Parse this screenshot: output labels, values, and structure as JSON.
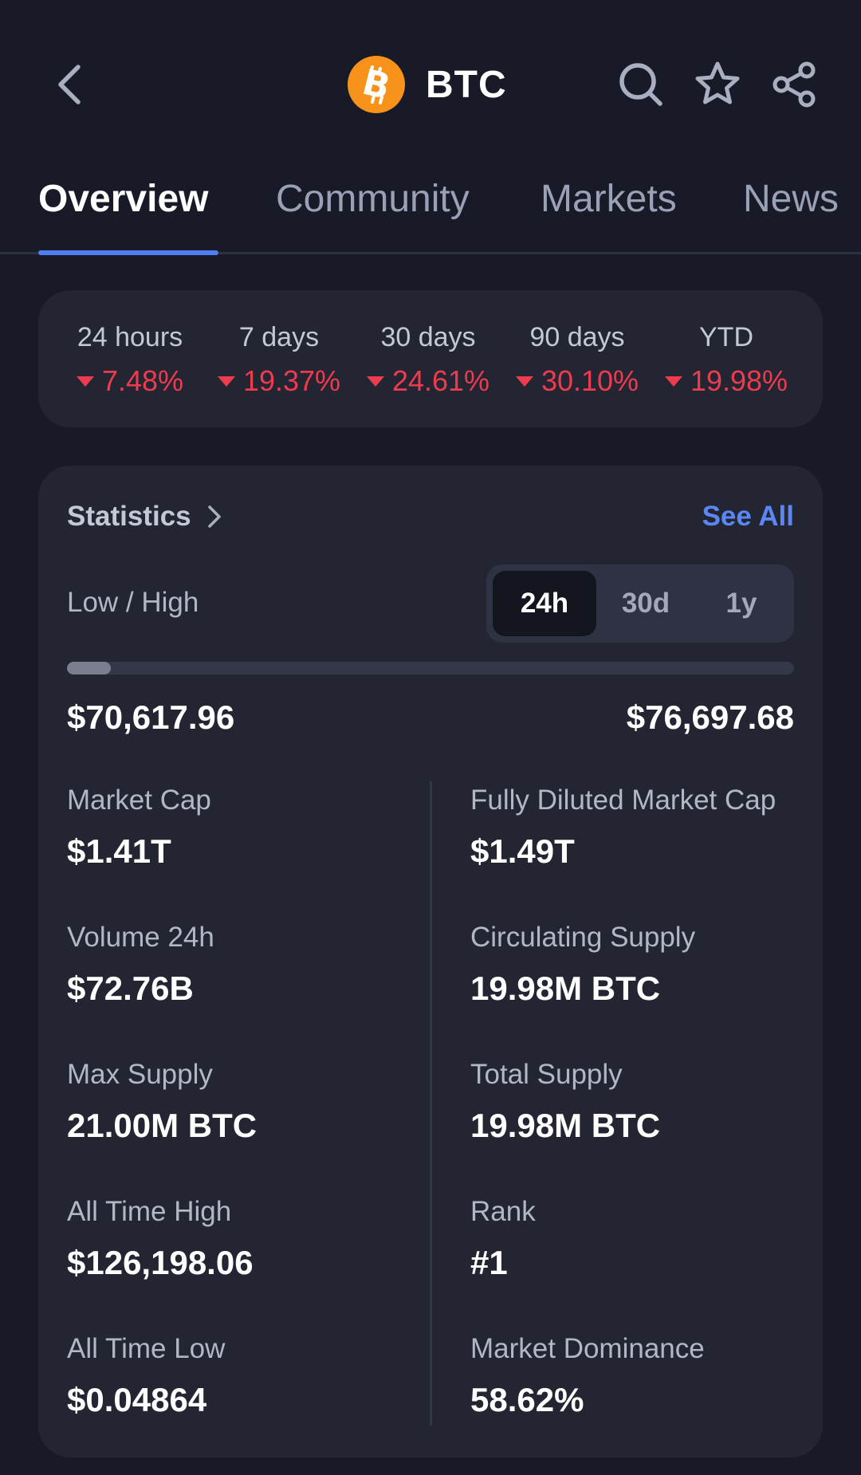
{
  "header": {
    "title": "BTC",
    "icons": {
      "back": "chevron-left-icon",
      "search": "search-icon",
      "favorite": "star-icon",
      "share": "share-icon"
    },
    "logo_color": "#f7931a"
  },
  "tabs": [
    {
      "label": "Overview",
      "active": true
    },
    {
      "label": "Community",
      "active": false
    },
    {
      "label": "Markets",
      "active": false
    },
    {
      "label": "News",
      "active": false
    }
  ],
  "performance": [
    {
      "label": "24 hours",
      "value": "7.48%",
      "direction": "down"
    },
    {
      "label": "7 days",
      "value": "19.37%",
      "direction": "down"
    },
    {
      "label": "30 days",
      "value": "24.61%",
      "direction": "down"
    },
    {
      "label": "90 days",
      "value": "30.10%",
      "direction": "down"
    },
    {
      "label": "YTD",
      "value": "19.98%",
      "direction": "down"
    }
  ],
  "statistics": {
    "title": "Statistics",
    "see_all": "See All",
    "low_high_label": "Low / High",
    "ranges": [
      {
        "label": "24h",
        "active": true
      },
      {
        "label": "30d",
        "active": false
      },
      {
        "label": "1y",
        "active": false
      }
    ],
    "low": "$70,617.96",
    "high": "$76,697.68",
    "range_fill_fraction": 0.06,
    "items": [
      {
        "label": "Market Cap",
        "value": "$1.41T"
      },
      {
        "label": "Fully Diluted Market Cap",
        "value": "$1.49T"
      },
      {
        "label": "Volume 24h",
        "value": "$72.76B"
      },
      {
        "label": "Circulating Supply",
        "value": "19.98M BTC"
      },
      {
        "label": "Max Supply",
        "value": "21.00M BTC"
      },
      {
        "label": "Total Supply",
        "value": "19.98M BTC"
      },
      {
        "label": "All Time High",
        "value": "$126,198.06"
      },
      {
        "label": "Rank",
        "value": "#1"
      },
      {
        "label": "All Time Low",
        "value": "$0.04864"
      },
      {
        "label": "Market Dominance",
        "value": "58.62%"
      }
    ]
  },
  "colors": {
    "background": "#181a27",
    "card": "#232533",
    "accent": "#4e7df4",
    "negative": "#ee3b4e"
  }
}
